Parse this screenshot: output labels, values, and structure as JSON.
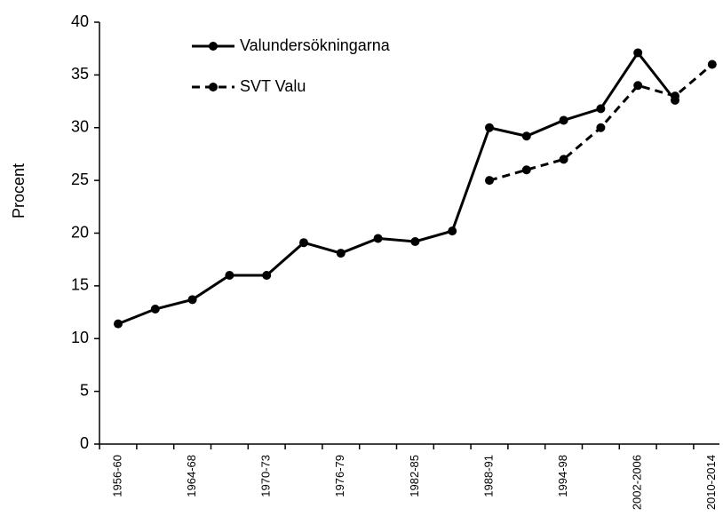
{
  "chart_data": {
    "type": "line",
    "ylabel": "Procent",
    "categories": [
      "1956-60",
      null,
      "1964-68",
      null,
      "1970-73",
      null,
      "1976-79",
      null,
      "1982-85",
      null,
      "1988-91",
      null,
      "1994-98",
      null,
      "2002-2006",
      null,
      "2010-2014"
    ],
    "series": [
      {
        "name": "Valundersökningarna",
        "color": "#000000",
        "dash": false,
        "values": [
          11.4,
          12.8,
          13.7,
          16,
          16,
          19.1,
          18.1,
          19.5,
          19.2,
          20.2,
          30,
          29.2,
          30.7,
          31.8,
          37.1,
          32.6,
          null
        ]
      },
      {
        "name": "SVT Valu",
        "color": "#000000",
        "dash": true,
        "values": [
          null,
          null,
          null,
          null,
          null,
          null,
          null,
          null,
          null,
          null,
          25,
          26,
          27,
          30,
          34,
          33,
          36
        ]
      }
    ],
    "ylim": [
      0,
      40
    ],
    "yticks": [
      0,
      5,
      10,
      15,
      20,
      25,
      30,
      35,
      40
    ],
    "grid": false,
    "legend": "upper left"
  }
}
